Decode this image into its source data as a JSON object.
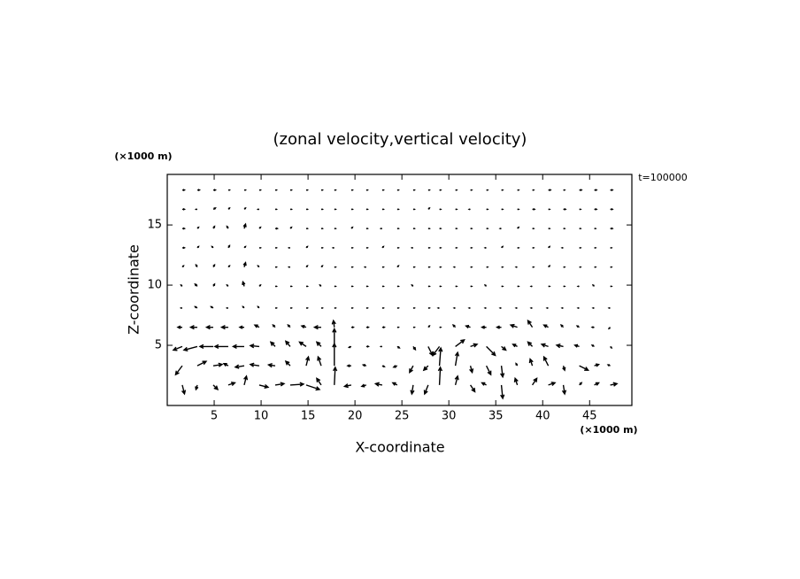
{
  "chart_data": {
    "type": "quiver",
    "title": "(zonal velocity,vertical velocity)",
    "x_label": "X-coordinate",
    "y_label": "Z-coordinate",
    "x_unit": "(×1000 m)",
    "y_unit": "(×1000 m)",
    "time_label": "t=100000",
    "color": "#000000",
    "xlim": [
      0,
      49.5
    ],
    "ylim": [
      0,
      19.2
    ],
    "xticks": [
      5,
      10,
      15,
      20,
      25,
      30,
      35,
      40,
      45
    ],
    "yticks": [
      5,
      10,
      15
    ],
    "x": [
      1.6,
      3.2,
      4.9,
      6.5,
      8.2,
      9.8,
      11.5,
      13.1,
      14.8,
      16.4,
      17.8,
      19.6,
      21.2,
      22.9,
      24.5,
      26.2,
      27.8,
      29.0,
      30.7,
      32.3,
      34.0,
      35.6,
      37.3,
      38.9,
      40.6,
      42.2,
      43.9,
      45.5,
      47.2
    ],
    "z": [
      1.7,
      3.3,
      4.9,
      6.5,
      8.1,
      9.9,
      11.5,
      13.1,
      14.7,
      16.3,
      17.9
    ],
    "u": [
      [
        0.5,
        -0.3,
        1,
        1.5,
        0.5,
        2,
        2,
        3,
        3,
        -1,
        0.2,
        -1.5,
        -1,
        -1.5,
        -1,
        -0.3,
        -0.8,
        0.2,
        0.5,
        1,
        -1,
        0.3,
        -0.5,
        1,
        1.5,
        0.3,
        0.5,
        1,
        1.5
      ],
      [
        -1.5,
        2,
        2,
        -1,
        -2,
        -2,
        -1.5,
        -1,
        0.5,
        -0.7,
        0,
        -0.8,
        -0.7,
        0.5,
        -0.8,
        -0.8,
        -1,
        0.3,
        0.5,
        0.4,
        1,
        0.3,
        -0.3,
        -0.5,
        -1,
        0.3,
        2,
        1,
        -0.5
      ],
      [
        -2,
        -3,
        -3,
        -3,
        -2.5,
        -2,
        -1,
        -1,
        -1.5,
        -1,
        0,
        -0.5,
        0.5,
        -0.3,
        0.5,
        0.5,
        1,
        -1.5,
        2,
        1.5,
        2,
        1,
        -1,
        -1,
        -1.5,
        -1.5,
        -1,
        -0.5,
        0.3
      ],
      [
        -1,
        -1.5,
        -1.5,
        -1.5,
        -1,
        -1,
        -0.5,
        -0.5,
        -1,
        -1.5,
        -0.2,
        0.5,
        0.5,
        0.5,
        0.3,
        0.3,
        0.3,
        0.3,
        -0.5,
        -1,
        -1,
        -1,
        -1.5,
        -1,
        -1,
        -0.5,
        -0.5,
        -0.5,
        -0.3
      ],
      [
        -0.3,
        -0.5,
        -0.5,
        -0.3,
        -0.3,
        -0.3,
        0.3,
        0.3,
        0.3,
        0.3,
        0.3,
        0.3,
        0.3,
        0.3,
        0.3,
        0.3,
        0.3,
        -0.3,
        -0.3,
        -0.3,
        -0.3,
        -0.3,
        -0.3,
        -0.3,
        -0.3,
        -0.3,
        -0.3,
        -0.3,
        -0.3
      ],
      [
        -0.3,
        -0.5,
        0.3,
        -0.3,
        -0.3,
        0.3,
        0.3,
        0.3,
        0.3,
        -0.3,
        0.3,
        0.3,
        0.3,
        0.3,
        0.3,
        -0.3,
        0.3,
        0.3,
        0.3,
        0.3,
        -0.3,
        0.3,
        0.3,
        -0.3,
        0.3,
        0.3,
        -0.3,
        -0.3,
        0.3
      ],
      [
        0.3,
        -0.3,
        0.3,
        0.3,
        0.3,
        -0.3,
        0.3,
        -0.3,
        0.3,
        0.3,
        0.3,
        0.3,
        -0.3,
        0.3,
        0.3,
        0.3,
        0.3,
        0.3,
        -0.3,
        0.3,
        0.3,
        0.3,
        -0.3,
        0.3,
        0.3,
        0.3,
        0.3,
        0.3,
        0.3
      ],
      [
        0.5,
        0.3,
        -0.3,
        0.3,
        0.3,
        0.3,
        0.3,
        -0.3,
        0.3,
        0.3,
        -0.3,
        0.3,
        0.3,
        0.3,
        0.3,
        -0.3,
        0.3,
        0.3,
        0.3,
        0.3,
        -0.3,
        0.3,
        0.3,
        0.3,
        0.3,
        -0.3,
        0.3,
        0.3,
        0.3
      ],
      [
        0.5,
        0.3,
        0.3,
        -0.3,
        0.3,
        0.3,
        0.5,
        0.3,
        0.3,
        0.3,
        0.3,
        0.3,
        0.3,
        -0.3,
        0.3,
        0.3,
        0.3,
        0.3,
        0.3,
        0.3,
        0.3,
        -0.3,
        0.3,
        0.3,
        0.3,
        0.3,
        0.3,
        0.3,
        0.5
      ],
      [
        0.5,
        -0.3,
        0.5,
        0.3,
        0.3,
        -0.3,
        0.3,
        0.3,
        0.3,
        0.3,
        0.3,
        0.3,
        0.3,
        0.3,
        0.3,
        0.3,
        0.3,
        0.3,
        0.3,
        -0.3,
        0.3,
        0.3,
        0.3,
        0.5,
        0.3,
        0.5,
        0.3,
        0.5,
        0.5
      ],
      [
        0.5,
        0.5,
        0.5,
        0.3,
        0.3,
        0.3,
        0.3,
        0.3,
        0.3,
        0.3,
        0.3,
        0.3,
        0.3,
        0.3,
        0.3,
        0.3,
        0.3,
        0.3,
        0.3,
        0.3,
        0.3,
        0.3,
        0.3,
        0.3,
        0.5,
        0.3,
        0.5,
        0.5,
        0.5
      ]
    ],
    "w": [
      [
        -2,
        -1,
        -1,
        0.5,
        2,
        -0.5,
        0.3,
        0.2,
        -1,
        1.5,
        4,
        -0.3,
        -0.3,
        0.3,
        0.5,
        -2,
        -2,
        4,
        2,
        -1.5,
        0.5,
        -3,
        1.5,
        1.5,
        0.5,
        -2,
        0.5,
        0.5,
        0.3
      ],
      [
        -2,
        1,
        0.3,
        0.5,
        -0.3,
        0.3,
        0.2,
        1,
        2,
        2,
        5,
        0,
        0.2,
        -0.2,
        -0.3,
        -1.5,
        -1,
        4,
        3,
        -1.5,
        -2,
        -2.5,
        0.5,
        1.5,
        2,
        -1,
        -1,
        0.3,
        0.2
      ],
      [
        -0.8,
        -0.8,
        0,
        0,
        0,
        0.2,
        1,
        1.2,
        1,
        1,
        4,
        -0.2,
        0,
        0,
        -0.3,
        -0.7,
        -2,
        -2,
        1.5,
        0.5,
        -2,
        -0.8,
        0.5,
        1,
        0.5,
        0.3,
        0.3,
        0.3,
        -0.3
      ],
      [
        0,
        0,
        0,
        0,
        0,
        0.5,
        0.5,
        0.5,
        0.3,
        0,
        1.5,
        0,
        0,
        0,
        0,
        0,
        0.3,
        0,
        0.5,
        0.3,
        0,
        0,
        0.5,
        1.5,
        0.5,
        0.5,
        0.3,
        0,
        -0.3
      ],
      [
        0,
        0.3,
        0.3,
        0,
        0.3,
        0.3,
        0,
        0,
        0,
        0,
        0,
        0,
        0,
        0,
        0,
        0,
        0,
        0,
        0,
        0,
        0,
        0,
        0,
        0,
        0,
        0,
        0,
        0,
        0
      ],
      [
        0.3,
        0.5,
        0.5,
        0.3,
        1,
        0.3,
        0,
        0,
        0,
        0.3,
        0,
        0,
        0,
        0,
        0,
        0.3,
        0,
        0,
        0,
        0,
        0.3,
        0,
        0,
        0,
        0,
        0,
        0,
        0.3,
        0
      ],
      [
        0.3,
        0.5,
        0.5,
        0.3,
        1,
        0.3,
        0,
        0,
        0.3,
        0.3,
        0,
        0,
        0,
        0,
        0.3,
        0,
        0,
        0,
        0,
        0,
        0,
        0,
        0,
        0,
        0.3,
        0,
        0,
        0,
        0
      ],
      [
        0,
        0.3,
        0.3,
        0.5,
        0.3,
        0,
        0,
        0,
        0.3,
        0,
        0,
        0,
        0,
        0.3,
        0,
        0,
        0,
        0,
        0,
        0,
        0,
        0.3,
        0,
        0,
        0.3,
        0,
        0,
        0,
        0
      ],
      [
        0,
        0.3,
        0.5,
        0.5,
        1,
        0.3,
        0,
        0.3,
        0,
        0,
        0,
        0.3,
        0,
        0,
        0,
        0,
        0,
        0,
        0,
        0,
        0,
        0,
        0.3,
        0,
        0,
        0,
        0,
        0,
        0
      ],
      [
        0,
        0,
        0.3,
        0.3,
        0.3,
        0,
        0,
        0,
        0,
        0,
        0,
        0,
        0,
        0,
        0,
        0,
        0.3,
        0,
        0,
        0,
        0,
        0,
        0,
        0,
        0,
        0,
        0,
        0,
        0
      ],
      [
        0,
        0,
        0,
        0,
        0,
        0,
        0,
        0,
        0,
        0,
        0,
        0,
        0,
        0,
        0,
        0,
        0,
        0,
        0,
        0,
        0,
        0,
        0,
        0,
        0,
        0,
        0,
        0,
        0
      ]
    ]
  }
}
